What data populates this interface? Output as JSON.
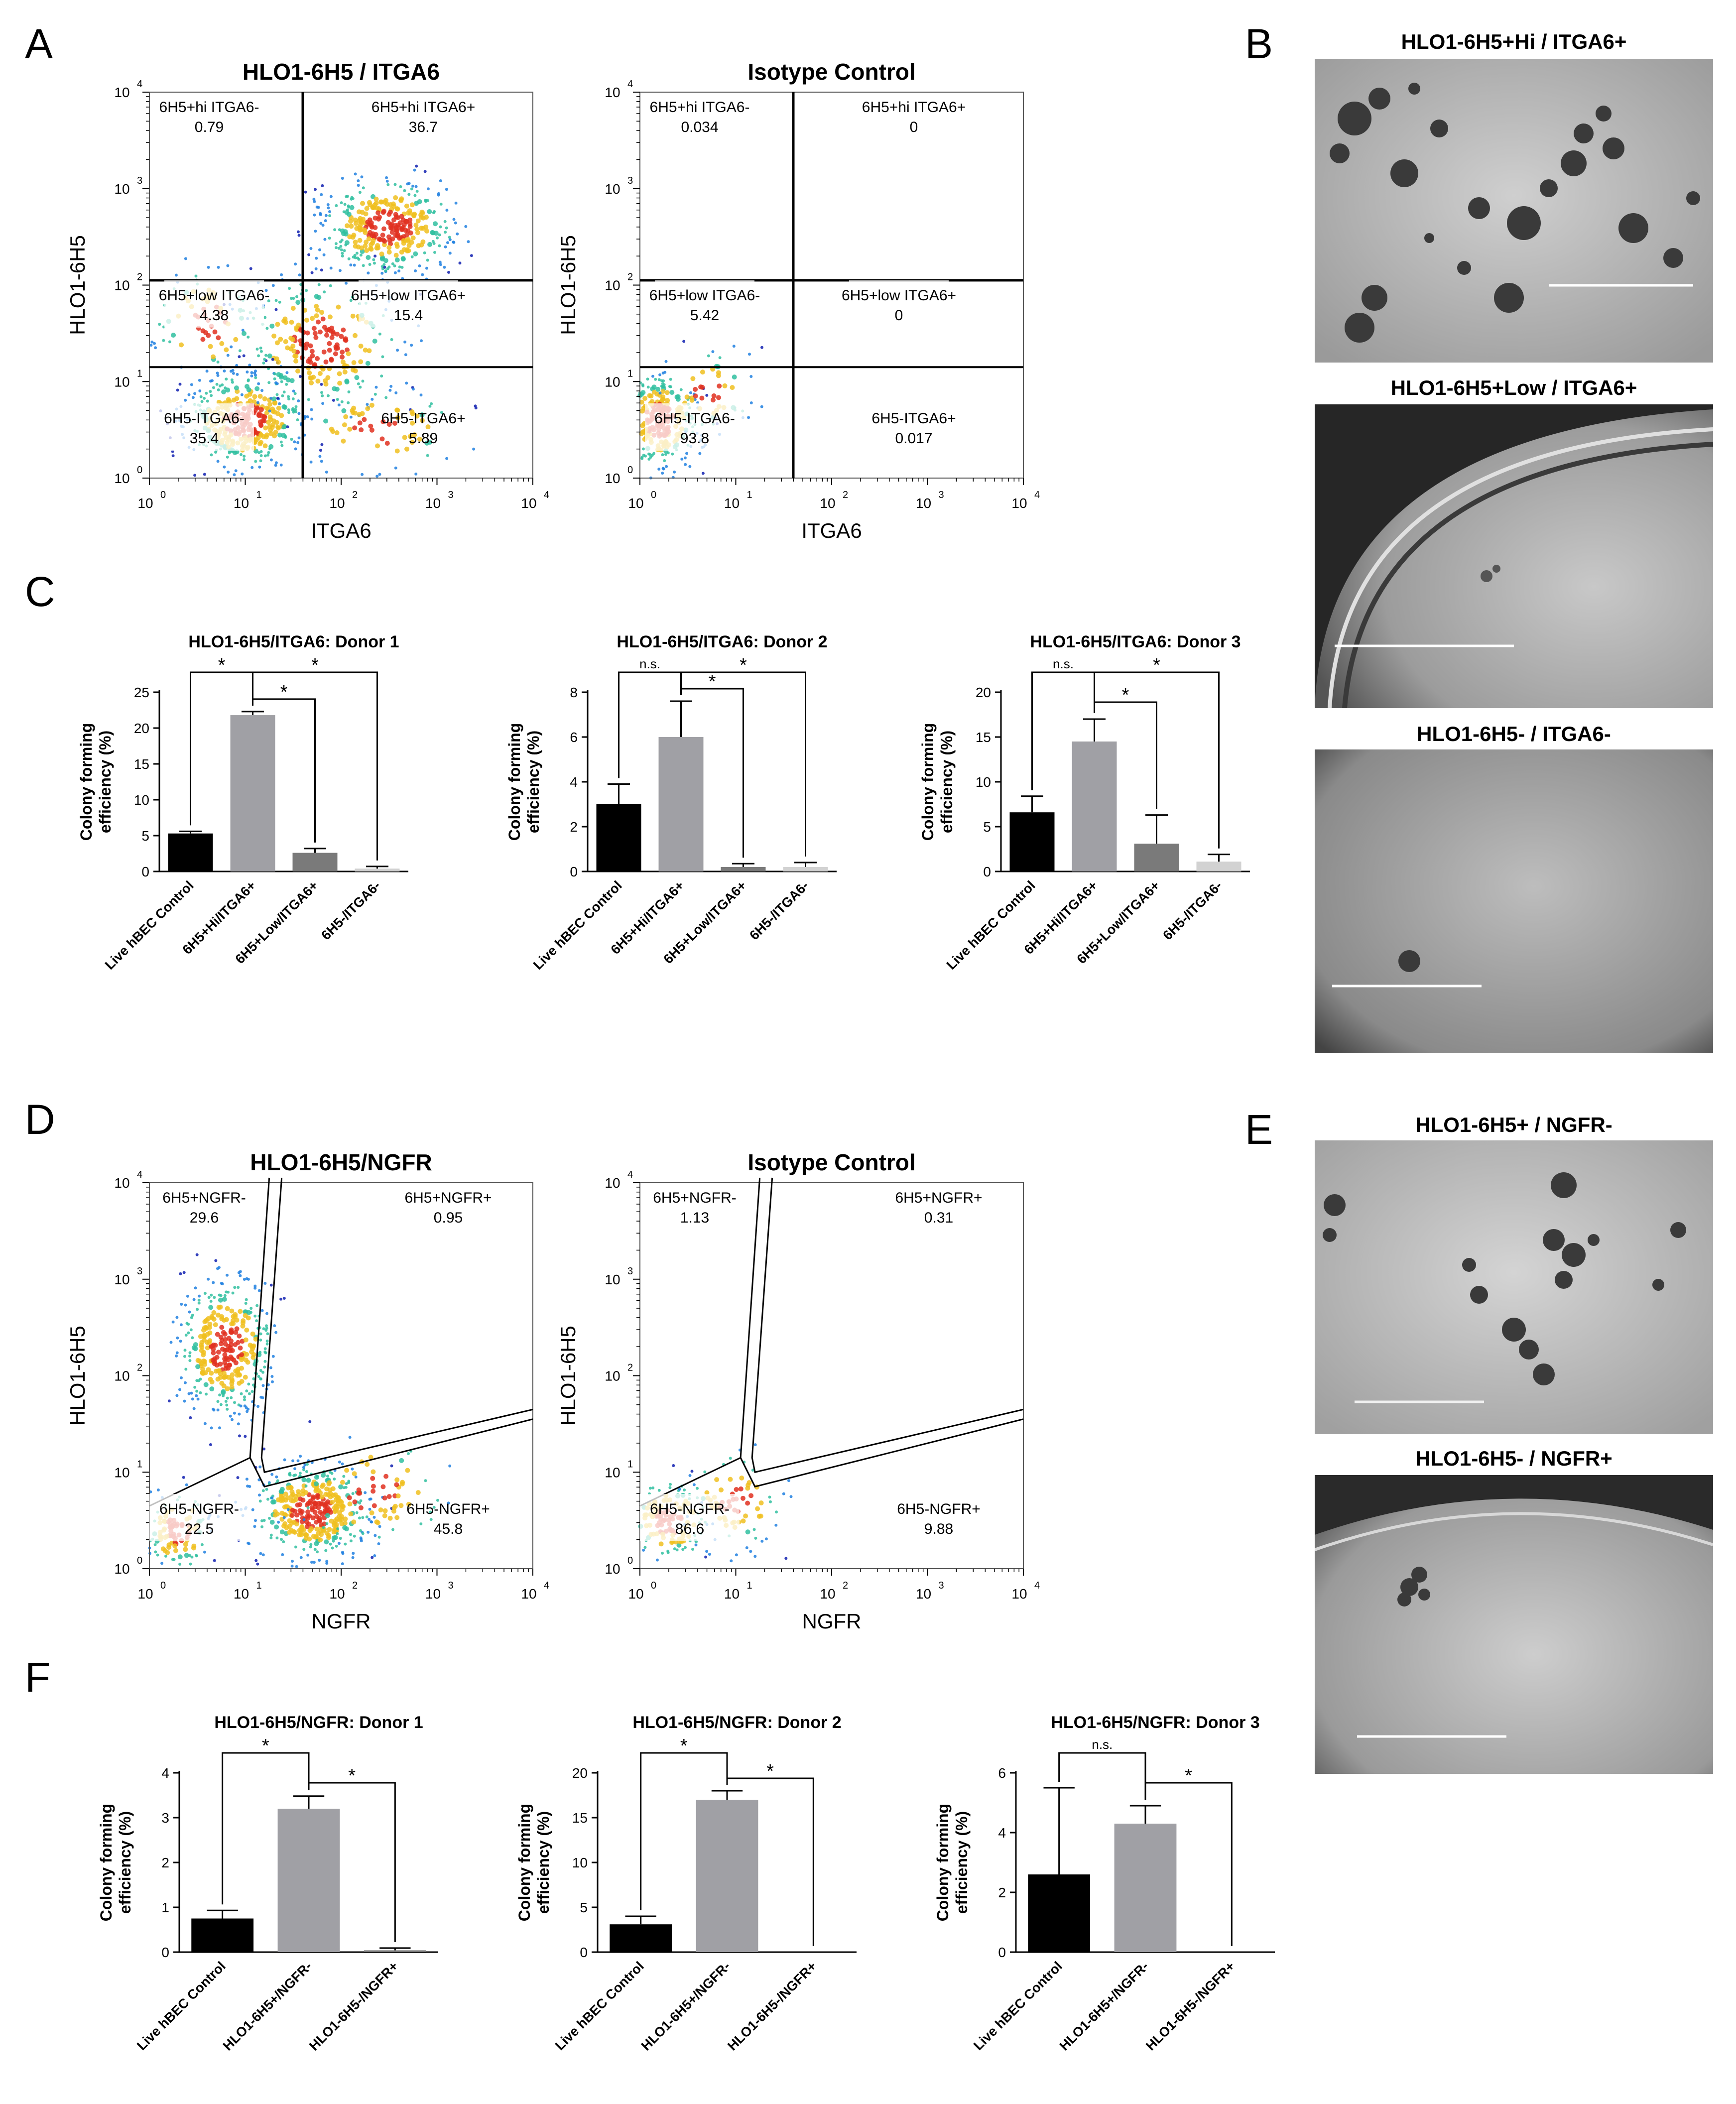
{
  "panel_letters": [
    "A",
    "B",
    "C",
    "D",
    "E",
    "F"
  ],
  "flow_plots": [
    {
      "title": "HLO1-6H5 / ITGA6",
      "xlabel": "ITGA6",
      "ylabel": "HLO1-6H5",
      "gate": "quadrant",
      "quadrants": [
        {
          "name": "6H5+hi ITGA6-",
          "value": "0.79"
        },
        {
          "name": "6H5+hi ITGA6+",
          "value": "36.7"
        },
        {
          "name": "6H5+low ITGA6-",
          "value": "4.38"
        },
        {
          "name": "6H5+low ITGA6+",
          "value": "15.4"
        },
        {
          "name": "6H5-ITGA6-",
          "value": "35.4"
        },
        {
          "name": "6H5-ITGA6+",
          "value": "5.89"
        }
      ]
    },
    {
      "title": "Isotype Control",
      "xlabel": "ITGA6",
      "ylabel": "HLO1-6H5",
      "gate": "quadrant",
      "quadrants": [
        {
          "name": "6H5+hi ITGA6-",
          "value": "0.034"
        },
        {
          "name": "6H5+hi ITGA6+",
          "value": "0"
        },
        {
          "name": "6H5+low ITGA6-",
          "value": "5.42"
        },
        {
          "name": "6H5+low ITGA6+",
          "value": "0"
        },
        {
          "name": "6H5-ITGA6-",
          "value": "93.8"
        },
        {
          "name": "6H5-ITGA6+",
          "value": "0.017"
        }
      ]
    },
    {
      "title": "HLO1-6H5/NGFR",
      "xlabel": "NGFR",
      "ylabel": "HLO1-6H5",
      "gate": "polygon",
      "quadrants": [
        {
          "name": "6H5+NGFR-",
          "value": "29.6"
        },
        {
          "name": "6H5+NGFR+",
          "value": "0.95"
        },
        {
          "name": "6H5-NGFR-",
          "value": "22.5"
        },
        {
          "name": "6H5-NGFR+",
          "value": "45.8"
        }
      ]
    },
    {
      "title": "Isotype Control",
      "xlabel": "NGFR",
      "ylabel": "HLO1-6H5",
      "gate": "polygon",
      "quadrants": [
        {
          "name": "6H5+NGFR-",
          "value": "1.13"
        },
        {
          "name": "6H5+NGFR+",
          "value": "0.31"
        },
        {
          "name": "6H5-NGFR-",
          "value": "86.6"
        },
        {
          "name": "6H5-NGFR+",
          "value": "9.88"
        }
      ]
    }
  ],
  "flow_axis_ticks": [
    "10",
    "10",
    "10",
    "10",
    "10"
  ],
  "flow_axis_exponents": [
    "0",
    "1",
    "2",
    "3",
    "4"
  ],
  "micrographs": [
    {
      "title": "HLO1-6H5+Hi  / ITGA6+"
    },
    {
      "title": "HLO1-6H5+Low / ITGA6+"
    },
    {
      "title": "HLO1-6H5- / ITGA6-"
    },
    {
      "title": "HLO1-6H5+ / NGFR-"
    },
    {
      "title": "HLO1-6H5- / NGFR+"
    }
  ],
  "bar_ylabel_line1": "Colony forming",
  "bar_ylabel_line2": "efficiency (%)",
  "colors": {
    "black": "#000000",
    "gray": "#a0a0a5",
    "dark_gray": "#7a7a7a",
    "light_gray": "#d2d2d2"
  },
  "chart_data": [
    {
      "type": "bar",
      "title": "HLO1-6H5/ITGA6: Donor 1",
      "categories": [
        "Live hBEC Control",
        "6H5+Hi/ITGA6+",
        "6H5+Low/ITGA6+",
        "6H5-/ITGA6-"
      ],
      "values": [
        5.3,
        21.8,
        2.6,
        0.4
      ],
      "errors": [
        0.3,
        0.5,
        0.6,
        0.3
      ],
      "ylim": [
        0,
        25
      ],
      "yticks": [
        "0",
        "5",
        "10",
        "15",
        "20",
        "25"
      ],
      "bar_colors": [
        "#000000",
        "#a0a0a5",
        "#7a7a7a",
        "#d2d2d2"
      ],
      "significance": [
        {
          "from": 0,
          "to": 1,
          "label": "*"
        },
        {
          "from": 1,
          "to": 2,
          "label": "*"
        },
        {
          "from": 1,
          "to": 3,
          "label": "*"
        }
      ]
    },
    {
      "type": "bar",
      "title": "HLO1-6H5/ITGA6: Donor 2",
      "categories": [
        "Live hBEC Control",
        "6H5+Hi/ITGA6+",
        "6H5+Low/ITGA6+",
        "6H5-/ITGA6-"
      ],
      "values": [
        3.0,
        6.0,
        0.2,
        0.2
      ],
      "errors": [
        0.9,
        1.6,
        0.15,
        0.2
      ],
      "ylim": [
        0,
        8
      ],
      "yticks": [
        "0",
        "2",
        "4",
        "6",
        "8"
      ],
      "bar_colors": [
        "#000000",
        "#a0a0a5",
        "#7a7a7a",
        "#d2d2d2"
      ],
      "significance": [
        {
          "from": 0,
          "to": 1,
          "label": "n.s."
        },
        {
          "from": 1,
          "to": 2,
          "label": "*"
        },
        {
          "from": 1,
          "to": 3,
          "label": "*"
        }
      ]
    },
    {
      "type": "bar",
      "title": "HLO1-6H5/ITGA6: Donor 3",
      "categories": [
        "Live hBEC Control",
        "6H5+Hi/ITGA6+",
        "6H5+Low/ITGA6+",
        "6H5-/ITGA6-"
      ],
      "values": [
        6.6,
        14.5,
        3.1,
        1.1
      ],
      "errors": [
        1.8,
        2.5,
        3.2,
        0.8
      ],
      "ylim": [
        0,
        20
      ],
      "yticks": [
        "0",
        "5",
        "10",
        "15",
        "20"
      ],
      "bar_colors": [
        "#000000",
        "#a0a0a5",
        "#7a7a7a",
        "#d2d2d2"
      ],
      "significance": [
        {
          "from": 0,
          "to": 1,
          "label": "n.s."
        },
        {
          "from": 1,
          "to": 2,
          "label": "*"
        },
        {
          "from": 1,
          "to": 3,
          "label": "*"
        }
      ]
    },
    {
      "type": "bar",
      "title": "HLO1-6H5/NGFR: Donor 1",
      "categories": [
        "Live hBEC Control",
        "HLO1-6H5+/NGFR-",
        "HLO1-6H5-/NGFR+"
      ],
      "values": [
        0.75,
        3.2,
        0.04
      ],
      "errors": [
        0.18,
        0.28,
        0.05
      ],
      "ylim": [
        0,
        4
      ],
      "yticks": [
        "0",
        "1",
        "2",
        "3",
        "4"
      ],
      "bar_colors": [
        "#000000",
        "#a0a0a5",
        "#7a7a7a"
      ],
      "significance": [
        {
          "from": 0,
          "to": 1,
          "label": "*"
        },
        {
          "from": 1,
          "to": 2,
          "label": "*"
        }
      ]
    },
    {
      "type": "bar",
      "title": "HLO1-6H5/NGFR: Donor 2",
      "categories": [
        "Live hBEC Control",
        "HLO1-6H5+/NGFR-",
        "HLO1-6H5-/NGFR+"
      ],
      "values": [
        3.1,
        17.0,
        0.0
      ],
      "errors": [
        0.9,
        1.0,
        0.0
      ],
      "ylim": [
        0,
        20
      ],
      "yticks": [
        "0",
        "5",
        "10",
        "15",
        "20"
      ],
      "bar_colors": [
        "#000000",
        "#a0a0a5",
        "#7a7a7a"
      ],
      "significance": [
        {
          "from": 0,
          "to": 1,
          "label": "*"
        },
        {
          "from": 1,
          "to": 2,
          "label": "*"
        }
      ]
    },
    {
      "type": "bar",
      "title": "HLO1-6H5/NGFR: Donor 3",
      "categories": [
        "Live hBEC Control",
        "HLO1-6H5+/NGFR-",
        "HLO1-6H5-/NGFR+"
      ],
      "values": [
        2.6,
        4.3,
        0.0
      ],
      "errors": [
        2.9,
        0.6,
        0.0
      ],
      "ylim": [
        0,
        6
      ],
      "yticks": [
        "0",
        "2",
        "4",
        "6"
      ],
      "bar_colors": [
        "#000000",
        "#a0a0a5",
        "#7a7a7a"
      ],
      "significance": [
        {
          "from": 0,
          "to": 1,
          "label": "n.s."
        },
        {
          "from": 1,
          "to": 2,
          "label": "*"
        }
      ]
    }
  ]
}
